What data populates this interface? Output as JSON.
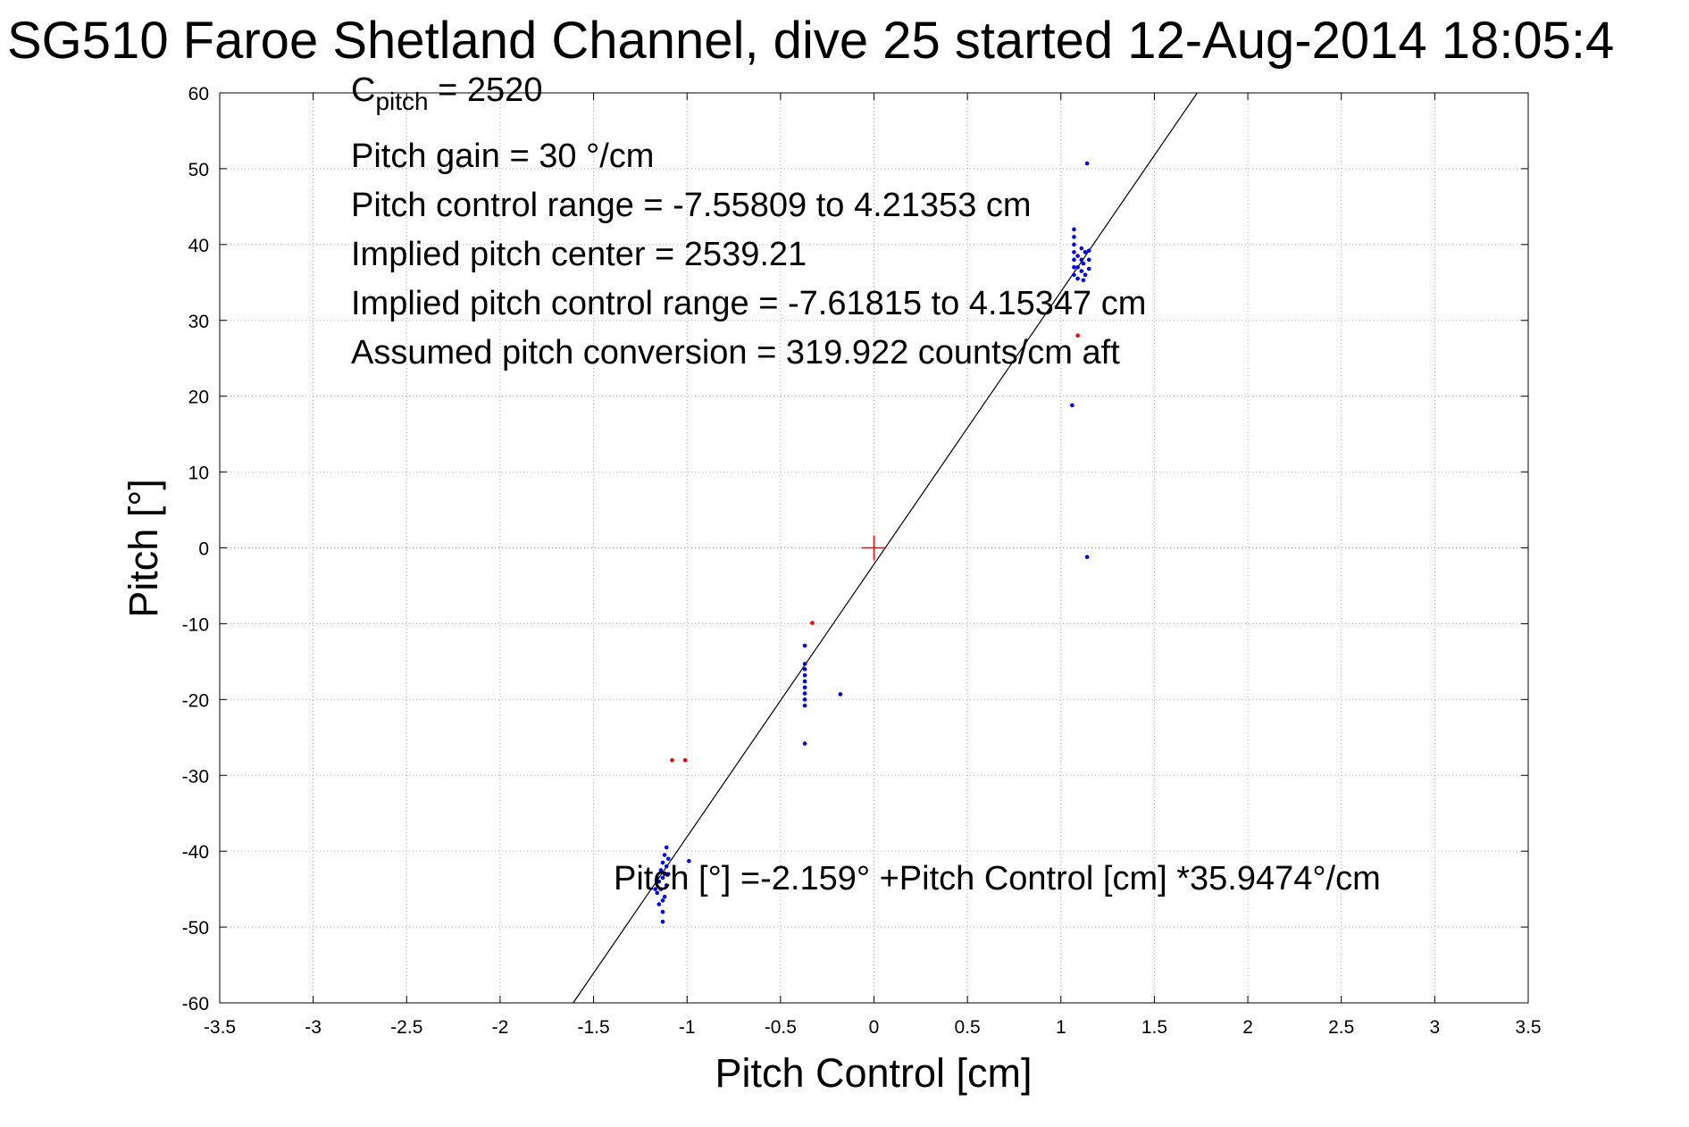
{
  "chart_data": {
    "type": "scatter",
    "title": "SG510 Faroe Shetland Channel, dive 25 started 12-Aug-2014 18:05:4",
    "xlabel": "Pitch Control [cm]",
    "ylabel": "Pitch [°]",
    "xlim": [
      -3.5,
      3.5
    ],
    "ylim": [
      -60,
      60
    ],
    "xticks": [
      "-3.5",
      "-3",
      "-2.5",
      "-2",
      "-1.5",
      "-1",
      "-0.5",
      "0",
      "0.5",
      "1",
      "1.5",
      "2",
      "2.5",
      "3",
      "3.5"
    ],
    "yticks": [
      "60",
      "50",
      "40",
      "30",
      "20",
      "10",
      "0",
      "-10",
      "-20",
      "-30",
      "-40",
      "-50",
      "-60"
    ],
    "grid": true,
    "annotations": {
      "c_pitch_symbol": "C",
      "c_pitch_subscript": "pitch",
      "c_pitch_value": " = 2520",
      "pitch_gain": "Pitch gain = 30 °/cm",
      "control_range": "Pitch control range = -7.55809 to 4.21353 cm",
      "implied_center": "Implied pitch center = 2539.21",
      "implied_range": "Implied pitch control range = -7.61815 to 4.15347 cm",
      "conversion": "Assumed pitch conversion = 319.922 counts/cm aft",
      "fit_equation": "Pitch [°] =-2.159° +Pitch Control [cm] *35.9474°/cm"
    },
    "fit_line": {
      "intercept": -2.159,
      "slope": 35.9474,
      "color": "#000000"
    },
    "center_marker": {
      "x": 0,
      "y": 0,
      "color": "#ff0000"
    },
    "series": [
      {
        "color": "#0000ff",
        "points": [
          [
            1.14,
            50.7
          ],
          [
            1.07,
            42.0
          ],
          [
            1.07,
            41.0
          ],
          [
            1.07,
            40.0
          ],
          [
            1.07,
            39.0
          ],
          [
            1.07,
            38.0
          ],
          [
            1.07,
            37.0
          ],
          [
            1.07,
            36.0
          ],
          [
            1.09,
            38.5
          ],
          [
            1.09,
            37.0
          ],
          [
            1.09,
            35.5
          ],
          [
            1.11,
            39.5
          ],
          [
            1.11,
            38.0
          ],
          [
            1.11,
            36.5
          ],
          [
            1.12,
            37.5
          ],
          [
            1.12,
            35.3
          ],
          [
            1.13,
            39.0
          ],
          [
            1.13,
            36.0
          ],
          [
            1.15,
            38.0
          ],
          [
            1.15,
            36.8
          ],
          [
            1.15,
            39.2
          ],
          [
            1.06,
            18.8
          ],
          [
            1.14,
            -1.2
          ],
          [
            -0.37,
            -12.9
          ],
          [
            -0.37,
            -15.3
          ],
          [
            -0.37,
            -16.0
          ],
          [
            -0.37,
            -16.8
          ],
          [
            -0.37,
            -17.6
          ],
          [
            -0.37,
            -18.4
          ],
          [
            -0.37,
            -19.2
          ],
          [
            -0.37,
            -20.0
          ],
          [
            -0.37,
            -20.8
          ],
          [
            -0.37,
            -25.8
          ],
          [
            -0.18,
            -19.3
          ],
          [
            -1.11,
            -39.5
          ],
          [
            -1.12,
            -40.5
          ],
          [
            -1.13,
            -41.5
          ],
          [
            -1.11,
            -42.0
          ],
          [
            -1.14,
            -42.5
          ],
          [
            -1.12,
            -43.0
          ],
          [
            -1.13,
            -43.5
          ],
          [
            -1.15,
            -44.0
          ],
          [
            -1.11,
            -44.5
          ],
          [
            -1.14,
            -45.0
          ],
          [
            -1.16,
            -45.5
          ],
          [
            -1.12,
            -46.0
          ],
          [
            -1.13,
            -46.5
          ],
          [
            -1.15,
            -47.0
          ],
          [
            -1.13,
            -48.0
          ],
          [
            -1.13,
            -49.3
          ],
          [
            -1.1,
            -41.0
          ],
          [
            -1.16,
            -43.5
          ],
          [
            -1.17,
            -45.0
          ],
          [
            -1.1,
            -43.0
          ],
          [
            -0.99,
            -41.3
          ]
        ]
      },
      {
        "color": "#ff0000",
        "points": [
          [
            -1.08,
            -28.0
          ],
          [
            -1.01,
            -28.0
          ],
          [
            -0.33,
            -9.9
          ],
          [
            1.09,
            28.0
          ]
        ]
      }
    ]
  }
}
